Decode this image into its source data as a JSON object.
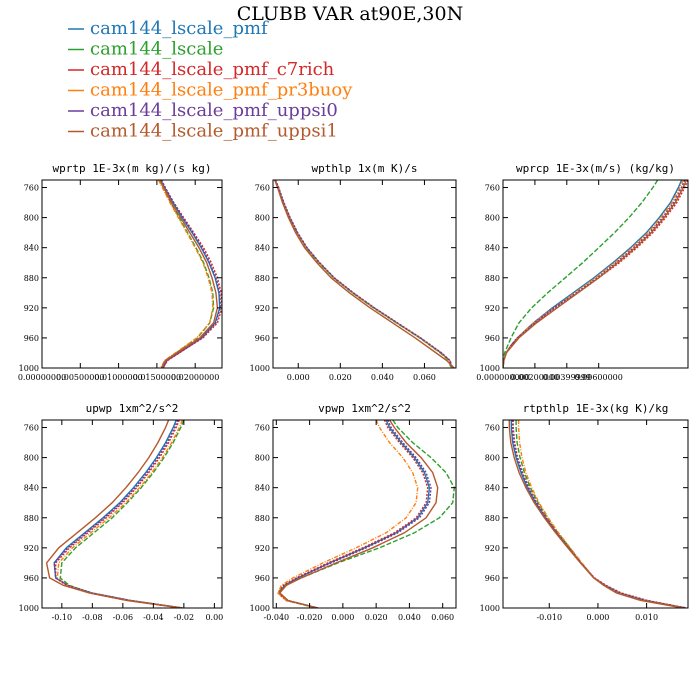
{
  "figure": {
    "title": "CLUBB VAR at90E,30N"
  },
  "legend": [
    {
      "name": "cam144_lscale_pmf",
      "color": "#1f77b4"
    },
    {
      "name": "cam144_lscale",
      "color": "#2ca02c"
    },
    {
      "name": "cam144_lscale_pmf_c7rich",
      "color": "#d62728"
    },
    {
      "name": "cam144_lscale_pmf_pr3buoy",
      "color": "#ff7f0e"
    },
    {
      "name": "cam144_lscale_pmf_uppsi0",
      "color": "#6a3d9a"
    },
    {
      "name": "cam144_lscale_pmf_uppsi1",
      "color": "#b5592d"
    }
  ],
  "chart_data": [
    {
      "type": "line",
      "title": "wprtp  1E-3x(m kg)/(s kg)",
      "ylim": [
        1000,
        750
      ],
      "yticks": [
        760,
        800,
        840,
        880,
        920,
        960,
        1000
      ],
      "xlim": [
        0.0,
        0.0235
      ],
      "xticks": [
        0.0,
        0.005,
        0.01,
        0.015,
        0.02
      ],
      "xticklabels": [
        "0.00000000",
        "0.00500000",
        "0.01000000",
        "0.01500000",
        "0.02000000"
      ],
      "y": [
        750,
        760,
        780,
        800,
        820,
        840,
        860,
        880,
        900,
        920,
        940,
        960,
        980,
        990,
        1000
      ],
      "series": [
        {
          "values": [
            0.0155,
            0.016,
            0.0171,
            0.0183,
            0.0196,
            0.0208,
            0.0218,
            0.0226,
            0.0231,
            0.0232,
            0.0226,
            0.0208,
            0.0178,
            0.0163,
            0.0158
          ]
        },
        {
          "values": [
            0.0153,
            0.0158,
            0.0168,
            0.0179,
            0.019,
            0.0201,
            0.0211,
            0.0218,
            0.0223,
            0.0224,
            0.0219,
            0.0203,
            0.0175,
            0.0161,
            0.0156
          ]
        },
        {
          "values": [
            0.0155,
            0.016,
            0.0172,
            0.0185,
            0.0198,
            0.0211,
            0.0221,
            0.0229,
            0.0234,
            0.0235,
            0.0229,
            0.021,
            0.0179,
            0.0164,
            0.0158
          ]
        },
        {
          "values": [
            0.0152,
            0.0157,
            0.0167,
            0.0178,
            0.0189,
            0.02,
            0.021,
            0.0217,
            0.0222,
            0.0223,
            0.0219,
            0.0202,
            0.0174,
            0.016,
            0.0155
          ]
        },
        {
          "values": [
            0.0156,
            0.0161,
            0.0172,
            0.0184,
            0.0197,
            0.0209,
            0.0219,
            0.0227,
            0.0232,
            0.0233,
            0.0227,
            0.0209,
            0.0179,
            0.0163,
            0.0158
          ]
        },
        {
          "values": [
            0.0154,
            0.0159,
            0.0169,
            0.0181,
            0.0193,
            0.0205,
            0.0215,
            0.0222,
            0.0227,
            0.0229,
            0.0224,
            0.0206,
            0.0176,
            0.0161,
            0.0156
          ]
        }
      ]
    },
    {
      "type": "line",
      "title": "wpthlp  1x(m K)/s",
      "ylim": [
        1000,
        750
      ],
      "yticks": [
        760,
        800,
        840,
        880,
        920,
        960,
        1000
      ],
      "xlim": [
        -0.012,
        0.075
      ],
      "xticks": [
        0.0,
        0.02,
        0.04,
        0.06
      ],
      "xticklabels": [
        "0.000",
        "0.020",
        "0.040",
        "0.060"
      ],
      "y": [
        750,
        760,
        780,
        800,
        820,
        840,
        860,
        880,
        900,
        920,
        940,
        960,
        980,
        990,
        1000
      ],
      "series": [
        {
          "values": [
            -0.011,
            -0.0095,
            -0.007,
            -0.004,
            -0.0005,
            0.004,
            0.01,
            0.017,
            0.026,
            0.036,
            0.047,
            0.058,
            0.068,
            0.072,
            0.073
          ]
        },
        {
          "values": [
            -0.011,
            -0.0097,
            -0.0072,
            -0.0042,
            -0.0008,
            0.0037,
            0.0097,
            0.0167,
            0.0257,
            0.0357,
            0.0467,
            0.0577,
            0.0676,
            0.0716,
            0.0726
          ]
        },
        {
          "values": [
            -0.0108,
            -0.0093,
            -0.0068,
            -0.0038,
            -0.0003,
            0.0042,
            0.0102,
            0.0172,
            0.0262,
            0.0362,
            0.0472,
            0.0582,
            0.0682,
            0.0722,
            0.0732
          ]
        },
        {
          "values": [
            -0.011,
            -0.0096,
            -0.0071,
            -0.0041,
            -0.0006,
            0.0039,
            0.0099,
            0.0169,
            0.0259,
            0.0359,
            0.0469,
            0.0579,
            0.0679,
            0.0719,
            0.0729
          ]
        },
        {
          "values": [
            -0.0109,
            -0.0094,
            -0.0069,
            -0.0039,
            -0.0004,
            0.0041,
            0.0101,
            0.0171,
            0.0261,
            0.0361,
            0.0471,
            0.0581,
            0.0681,
            0.0721,
            0.0731
          ]
        },
        {
          "values": [
            -0.0112,
            -0.0098,
            -0.0075,
            -0.0047,
            -0.0013,
            0.003,
            0.0088,
            0.0156,
            0.0243,
            0.0341,
            0.0449,
            0.0556,
            0.0656,
            0.0706,
            0.0741
          ]
        }
      ]
    },
    {
      "type": "line",
      "title": "wprcp  1E-3x(m/s) (kg/kg)",
      "ylim": [
        1000,
        750
      ],
      "yticks": [
        760,
        800,
        840,
        880,
        920,
        960,
        1000
      ],
      "xlim": [
        0.0,
        0.0116
      ],
      "xticks": [
        0.0,
        0.002,
        0.004,
        0.006
      ],
      "xticklabels": [
        "0.000000000",
        "0.00200000",
        "0.00399999",
        "0.00600000"
      ],
      "y": [
        750,
        760,
        780,
        800,
        820,
        840,
        860,
        880,
        900,
        920,
        940,
        960,
        970,
        980,
        990,
        1000
      ],
      "series": [
        {
          "values": [
            0.0112,
            0.011,
            0.0105,
            0.0098,
            0.009,
            0.008,
            0.0069,
            0.0057,
            0.0044,
            0.0031,
            0.0019,
            0.0009,
            0.0005,
            0.0002,
            5e-05,
            0.0
          ]
        },
        {
          "values": [
            0.0097,
            0.0094,
            0.0087,
            0.0079,
            0.007,
            0.006,
            0.005,
            0.0039,
            0.0028,
            0.0018,
            0.001,
            0.0005,
            0.0003,
            0.0001,
            2e-05,
            0.0
          ]
        },
        {
          "values": [
            0.0116,
            0.0114,
            0.0109,
            0.0102,
            0.0094,
            0.0084,
            0.0073,
            0.006,
            0.0047,
            0.0033,
            0.002,
            0.0009,
            0.0005,
            0.0002,
            5e-05,
            0.0
          ]
        },
        {
          "values": [
            0.0113,
            0.0111,
            0.0106,
            0.0099,
            0.0091,
            0.0081,
            0.007,
            0.0058,
            0.0045,
            0.0032,
            0.0019,
            0.0009,
            0.0005,
            0.0002,
            5e-05,
            0.0
          ]
        },
        {
          "values": [
            0.0114,
            0.0112,
            0.0107,
            0.01,
            0.0092,
            0.0082,
            0.0071,
            0.0059,
            0.0046,
            0.0032,
            0.002,
            0.0009,
            0.0005,
            0.0002,
            5e-05,
            0.0
          ]
        },
        {
          "values": [
            0.0115,
            0.0113,
            0.0108,
            0.0101,
            0.0093,
            0.0083,
            0.0072,
            0.006,
            0.0047,
            0.0034,
            0.0021,
            0.001,
            0.0006,
            0.0002,
            5e-05,
            0.0
          ]
        }
      ]
    },
    {
      "type": "line",
      "title": "upwp  1xm^2/s^2",
      "ylim": [
        1000,
        750
      ],
      "yticks": [
        760,
        800,
        840,
        880,
        920,
        960,
        1000
      ],
      "xlim": [
        -0.113,
        0.005
      ],
      "xticks": [
        -0.1,
        -0.08,
        -0.06,
        -0.04,
        -0.02,
        0.0
      ],
      "xticklabels": [
        "-0.10",
        "-0.08",
        "-0.06",
        "-0.04",
        "-0.02",
        "0.00"
      ],
      "y": [
        750,
        760,
        780,
        800,
        820,
        840,
        860,
        880,
        900,
        920,
        940,
        960,
        970,
        980,
        990,
        1000
      ],
      "series": [
        {
          "values": [
            -0.025,
            -0.027,
            -0.032,
            -0.038,
            -0.045,
            -0.053,
            -0.062,
            -0.073,
            -0.085,
            -0.097,
            -0.105,
            -0.104,
            -0.096,
            -0.08,
            -0.055,
            -0.021
          ]
        },
        {
          "values": [
            -0.02,
            -0.022,
            -0.027,
            -0.033,
            -0.04,
            -0.048,
            -0.057,
            -0.067,
            -0.079,
            -0.091,
            -0.1,
            -0.101,
            -0.095,
            -0.081,
            -0.056,
            -0.022
          ]
        },
        {
          "values": [
            -0.023,
            -0.025,
            -0.03,
            -0.036,
            -0.043,
            -0.051,
            -0.06,
            -0.071,
            -0.083,
            -0.095,
            -0.104,
            -0.104,
            -0.097,
            -0.082,
            -0.057,
            -0.022
          ]
        },
        {
          "values": [
            -0.021,
            -0.023,
            -0.028,
            -0.034,
            -0.041,
            -0.049,
            -0.058,
            -0.069,
            -0.081,
            -0.093,
            -0.102,
            -0.103,
            -0.096,
            -0.081,
            -0.056,
            -0.022
          ]
        },
        {
          "values": [
            -0.024,
            -0.026,
            -0.031,
            -0.037,
            -0.044,
            -0.052,
            -0.061,
            -0.072,
            -0.084,
            -0.096,
            -0.105,
            -0.104,
            -0.096,
            -0.08,
            -0.055,
            -0.021
          ]
        },
        {
          "values": [
            -0.03,
            -0.032,
            -0.037,
            -0.043,
            -0.05,
            -0.058,
            -0.067,
            -0.078,
            -0.09,
            -0.102,
            -0.11,
            -0.108,
            -0.099,
            -0.082,
            -0.057,
            -0.021
          ]
        }
      ]
    },
    {
      "type": "line",
      "title": "vpwp  1xm^2/s^2",
      "ylim": [
        1000,
        750
      ],
      "yticks": [
        760,
        800,
        840,
        880,
        920,
        960,
        1000
      ],
      "xlim": [
        -0.042,
        0.068
      ],
      "xticks": [
        -0.04,
        -0.02,
        0.0,
        0.02,
        0.04,
        0.06
      ],
      "xticklabels": [
        "-0.040",
        "-0.020",
        "0.000",
        "0.020",
        "0.040",
        "0.060"
      ],
      "y": [
        750,
        760,
        780,
        800,
        820,
        840,
        860,
        880,
        900,
        920,
        940,
        960,
        970,
        980,
        990,
        1000
      ],
      "series": [
        {
          "values": [
            0.026,
            0.028,
            0.035,
            0.043,
            0.049,
            0.052,
            0.051,
            0.045,
            0.032,
            0.013,
            -0.008,
            -0.027,
            -0.035,
            -0.038,
            -0.033,
            -0.015
          ]
        },
        {
          "values": [
            0.03,
            0.033,
            0.042,
            0.053,
            0.062,
            0.067,
            0.066,
            0.058,
            0.043,
            0.022,
            -0.003,
            -0.025,
            -0.035,
            -0.039,
            -0.034,
            -0.016
          ]
        },
        {
          "values": [
            0.025,
            0.027,
            0.034,
            0.042,
            0.048,
            0.051,
            0.05,
            0.044,
            0.031,
            0.012,
            -0.009,
            -0.028,
            -0.036,
            -0.039,
            -0.034,
            -0.015
          ]
        },
        {
          "values": [
            0.02,
            0.022,
            0.028,
            0.036,
            0.042,
            0.045,
            0.044,
            0.038,
            0.026,
            0.008,
            -0.012,
            -0.03,
            -0.037,
            -0.039,
            -0.034,
            -0.015
          ]
        },
        {
          "values": [
            0.027,
            0.029,
            0.036,
            0.044,
            0.05,
            0.053,
            0.052,
            0.046,
            0.033,
            0.014,
            -0.007,
            -0.027,
            -0.035,
            -0.038,
            -0.033,
            -0.015
          ]
        },
        {
          "values": [
            0.028,
            0.031,
            0.038,
            0.047,
            0.054,
            0.057,
            0.056,
            0.05,
            0.037,
            0.018,
            -0.004,
            -0.025,
            -0.034,
            -0.038,
            -0.033,
            -0.015
          ]
        }
      ]
    },
    {
      "type": "line",
      "title": "rtpthlp  1E-3x(kg K)/kg",
      "ylim": [
        1000,
        750
      ],
      "yticks": [
        760,
        800,
        840,
        880,
        920,
        960,
        1000
      ],
      "xlim": [
        -0.0195,
        0.0185
      ],
      "xticks": [
        -0.01,
        0.0,
        0.01
      ],
      "xticklabels": [
        "-0.010",
        "0.000",
        "0.010"
      ],
      "y": [
        750,
        760,
        780,
        800,
        820,
        840,
        860,
        880,
        900,
        920,
        940,
        960,
        970,
        980,
        990,
        1000
      ],
      "series": [
        {
          "values": [
            -0.0178,
            -0.0178,
            -0.0175,
            -0.0168,
            -0.0158,
            -0.0145,
            -0.0128,
            -0.0108,
            -0.0085,
            -0.006,
            -0.0035,
            -0.0008,
            0.0015,
            0.0045,
            0.0098,
            0.018
          ]
        },
        {
          "values": [
            -0.0168,
            -0.0168,
            -0.0166,
            -0.016,
            -0.0151,
            -0.0139,
            -0.0123,
            -0.0104,
            -0.0082,
            -0.0058,
            -0.0034,
            -0.0008,
            0.0014,
            0.0043,
            0.0095,
            0.0178
          ]
        },
        {
          "values": [
            -0.0174,
            -0.0174,
            -0.0171,
            -0.0165,
            -0.0155,
            -0.0142,
            -0.0126,
            -0.0106,
            -0.0084,
            -0.006,
            -0.0035,
            -0.0007,
            0.0017,
            0.0048,
            0.0102,
            0.0182
          ]
        },
        {
          "values": [
            -0.0163,
            -0.0163,
            -0.0161,
            -0.0156,
            -0.0148,
            -0.0136,
            -0.0121,
            -0.0102,
            -0.0081,
            -0.0057,
            -0.0033,
            -0.0008,
            0.0014,
            0.0043,
            0.0095,
            0.0178
          ]
        },
        {
          "values": [
            -0.0176,
            -0.0176,
            -0.0173,
            -0.0166,
            -0.0156,
            -0.0143,
            -0.0127,
            -0.0107,
            -0.0085,
            -0.006,
            -0.0035,
            -0.0008,
            0.0015,
            0.0045,
            0.0098,
            0.018
          ]
        },
        {
          "values": [
            -0.0182,
            -0.0182,
            -0.0179,
            -0.0172,
            -0.0162,
            -0.0148,
            -0.0131,
            -0.011,
            -0.0087,
            -0.0062,
            -0.0036,
            -0.0009,
            0.0012,
            0.0038,
            0.0088,
            0.0175
          ]
        }
      ]
    }
  ]
}
